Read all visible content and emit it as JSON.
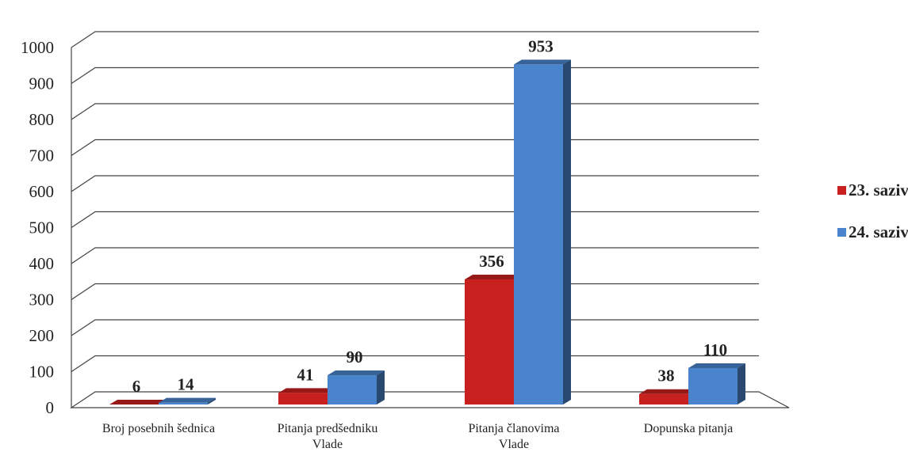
{
  "chart_data": {
    "type": "bar",
    "categories": [
      [
        "Broj posebnih šednica"
      ],
      [
        "Pitanja predšedniku",
        "Vlade"
      ],
      [
        "Pitanja članovima",
        "Vlade"
      ],
      [
        "Dopunska pitanja"
      ]
    ],
    "series": [
      {
        "name": "23. saziv",
        "values": [
          6,
          41,
          356,
          38
        ],
        "color": "#c8201f"
      },
      {
        "name": "24. saziv",
        "values": [
          14,
          90,
          953,
          110
        ],
        "color": "#4a84cc"
      }
    ],
    "ylim": [
      0,
      1000
    ],
    "yticks": [
      0,
      100,
      200,
      300,
      400,
      500,
      600,
      700,
      800,
      900,
      1000
    ],
    "grid": true,
    "legend_position": "right",
    "style": "3d-clustered"
  }
}
